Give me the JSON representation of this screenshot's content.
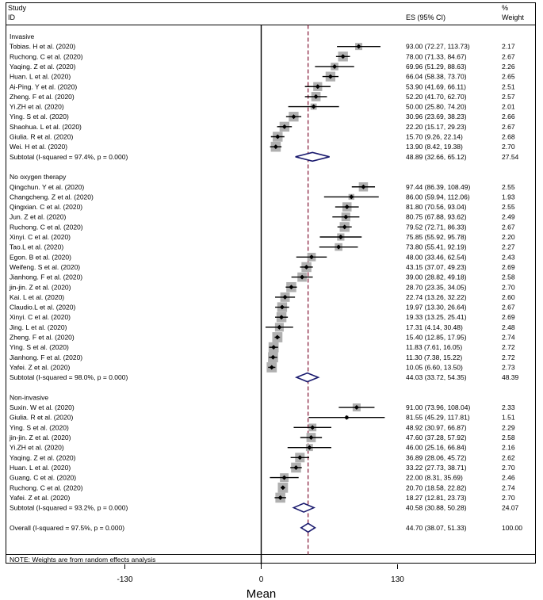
{
  "header": {
    "study_l1": "Study",
    "study_l2": "ID",
    "es": "ES (95% CI)",
    "weight_l1": "%",
    "weight_l2": "Weight"
  },
  "footer_note": "NOTE: Weights are from random effects analysis",
  "x_label": "Mean",
  "x_ticks": [
    "-130",
    "0",
    "130"
  ],
  "colors": {
    "diamond": "#1a1a6e",
    "box": "#b0b0b0",
    "ref_line": "#8b2340"
  },
  "chart_data": {
    "type": "forest",
    "xlabel": "Mean",
    "xlim": [
      -130,
      130
    ],
    "xticks": [
      -130,
      0,
      130
    ],
    "reference_line": 44.7,
    "groups": [
      {
        "name": "Invasive",
        "studies": [
          {
            "id": "Tobias. H et al. (2020)",
            "es": 93.0,
            "lo": 72.27,
            "hi": 113.73,
            "es_text": "93.00 (72.27, 113.73)",
            "weight": "2.17"
          },
          {
            "id": "Ruchong. C et al. (2020)",
            "es": 78.0,
            "lo": 71.33,
            "hi": 84.67,
            "es_text": "78.00 (71.33, 84.67)",
            "weight": "2.67"
          },
          {
            "id": "Yaqing. Z et al. (2020)",
            "es": 69.96,
            "lo": 51.29,
            "hi": 88.63,
            "es_text": "69.96 (51.29, 88.63)",
            "weight": "2.26"
          },
          {
            "id": "Huan. L et al. (2020)",
            "es": 66.04,
            "lo": 58.38,
            "hi": 73.7,
            "es_text": "66.04 (58.38, 73.70)",
            "weight": "2.65"
          },
          {
            "id": "Ai-Ping. Y et al. (2020)",
            "es": 53.9,
            "lo": 41.69,
            "hi": 66.11,
            "es_text": "53.90 (41.69, 66.11)",
            "weight": "2.51"
          },
          {
            "id": "Zheng. F et al. (2020)",
            "es": 52.2,
            "lo": 41.7,
            "hi": 62.7,
            "es_text": "52.20 (41.70, 62.70)",
            "weight": "2.57"
          },
          {
            "id": "Yi.ZH et al. (2020)",
            "es": 50.0,
            "lo": 25.8,
            "hi": 74.2,
            "es_text": "50.00 (25.80, 74.20)",
            "weight": "2.01"
          },
          {
            "id": "Ying. S et al. (2020)",
            "es": 30.96,
            "lo": 23.69,
            "hi": 38.23,
            "es_text": "30.96 (23.69, 38.23)",
            "weight": "2.66"
          },
          {
            "id": "Shaohua. L et al. (2020)",
            "es": 22.2,
            "lo": 15.17,
            "hi": 29.23,
            "es_text": "22.20 (15.17, 29.23)",
            "weight": "2.67"
          },
          {
            "id": "Giulia. R et al. (2020)",
            "es": 15.7,
            "lo": 9.26,
            "hi": 22.14,
            "es_text": "15.70 (9.26, 22.14)",
            "weight": "2.68"
          },
          {
            "id": "Wei. H et al. (2020)",
            "es": 13.9,
            "lo": 8.42,
            "hi": 19.38,
            "es_text": "13.90 (8.42, 19.38)",
            "weight": "2.70"
          }
        ],
        "subtotal": {
          "label": "Subtotal  (I-squared = 97.4%, p = 0.000)",
          "es": 48.89,
          "lo": 32.66,
          "hi": 65.12,
          "es_text": "48.89 (32.66, 65.12)",
          "weight": "27.54"
        }
      },
      {
        "name": "No oxygen therapy",
        "studies": [
          {
            "id": "Qingchun. Y et al. (2020)",
            "es": 97.44,
            "lo": 86.39,
            "hi": 108.49,
            "es_text": "97.44 (86.39, 108.49)",
            "weight": "2.55"
          },
          {
            "id": "Changcheng. Z et al. (2020)",
            "es": 86.0,
            "lo": 59.94,
            "hi": 112.06,
            "es_text": "86.00 (59.94, 112.06)",
            "weight": "1.93"
          },
          {
            "id": "Qingxian. C et al. (2020)",
            "es": 81.8,
            "lo": 70.56,
            "hi": 93.04,
            "es_text": "81.80 (70.56, 93.04)",
            "weight": "2.55"
          },
          {
            "id": "Jun. Z et al. (2020)",
            "es": 80.75,
            "lo": 67.88,
            "hi": 93.62,
            "es_text": "80.75 (67.88, 93.62)",
            "weight": "2.49"
          },
          {
            "id": "Ruchong. C et al. (2020)",
            "es": 79.52,
            "lo": 72.71,
            "hi": 86.33,
            "es_text": "79.52 (72.71, 86.33)",
            "weight": "2.67"
          },
          {
            "id": "Xinyi. C et al. (2020)",
            "es": 75.85,
            "lo": 55.92,
            "hi": 95.78,
            "es_text": "75.85 (55.92, 95.78)",
            "weight": "2.20"
          },
          {
            "id": "Tao.L et al. (2020)",
            "es": 73.8,
            "lo": 55.41,
            "hi": 92.19,
            "es_text": "73.80 (55.41, 92.19)",
            "weight": "2.27"
          },
          {
            "id": "Egon. B et al. (2020)",
            "es": 48.0,
            "lo": 33.46,
            "hi": 62.54,
            "es_text": "48.00 (33.46, 62.54)",
            "weight": "2.43"
          },
          {
            "id": "Weifeng. S et al. (2020)",
            "es": 43.15,
            "lo": 37.07,
            "hi": 49.23,
            "es_text": "43.15 (37.07, 49.23)",
            "weight": "2.69"
          },
          {
            "id": "Jianhong. F et al. (2020)",
            "es": 39.0,
            "lo": 28.82,
            "hi": 49.18,
            "es_text": "39.00 (28.82, 49.18)",
            "weight": "2.58"
          },
          {
            "id": "jin-jin. Z et al. (2020)",
            "es": 28.7,
            "lo": 23.35,
            "hi": 34.05,
            "es_text": "28.70 (23.35, 34.05)",
            "weight": "2.70"
          },
          {
            "id": "Kai. L et al. (2020)",
            "es": 22.74,
            "lo": 13.26,
            "hi": 32.22,
            "es_text": "22.74 (13.26, 32.22)",
            "weight": "2.60"
          },
          {
            "id": "Claudio.L et al. (2020)",
            "es": 19.97,
            "lo": 13.3,
            "hi": 26.64,
            "es_text": "19.97 (13.30, 26.64)",
            "weight": "2.67"
          },
          {
            "id": "Xinyi. C et al. (2020)",
            "es": 19.33,
            "lo": 13.25,
            "hi": 25.41,
            "es_text": "19.33 (13.25, 25.41)",
            "weight": "2.69"
          },
          {
            "id": "Jing. L et al. (2020)",
            "es": 17.31,
            "lo": 4.14,
            "hi": 30.48,
            "es_text": "17.31 (4.14, 30.48)",
            "weight": "2.48"
          },
          {
            "id": "Zheng. F et al. (2020)",
            "es": 15.4,
            "lo": 12.85,
            "hi": 17.95,
            "es_text": "15.40 (12.85, 17.95)",
            "weight": "2.74"
          },
          {
            "id": "Ying. S et al. (2020)",
            "es": 11.83,
            "lo": 7.61,
            "hi": 16.05,
            "es_text": "11.83 (7.61, 16.05)",
            "weight": "2.72"
          },
          {
            "id": "Jianhong. F et al. (2020)",
            "es": 11.3,
            "lo": 7.38,
            "hi": 15.22,
            "es_text": "11.30 (7.38, 15.22)",
            "weight": "2.72"
          },
          {
            "id": "Yafei. Z et al. (2020)",
            "es": 10.05,
            "lo": 6.6,
            "hi": 13.5,
            "es_text": "10.05 (6.60, 13.50)",
            "weight": "2.73"
          }
        ],
        "subtotal": {
          "label": "Subtotal  (I-squared = 98.0%, p = 0.000)",
          "es": 44.03,
          "lo": 33.72,
          "hi": 54.35,
          "es_text": "44.03 (33.72, 54.35)",
          "weight": "48.39"
        }
      },
      {
        "name": "Non-invasive",
        "studies": [
          {
            "id": "Suxin. W et al. (2020)",
            "es": 91.0,
            "lo": 73.96,
            "hi": 108.04,
            "es_text": "91.00 (73.96, 108.04)",
            "weight": "2.33"
          },
          {
            "id": "Giulia. R et al. (2020)",
            "es": 81.55,
            "lo": 45.29,
            "hi": 117.81,
            "es_text": "81.55 (45.29, 117.81)",
            "weight": "1.51"
          },
          {
            "id": "Ying. S et al. (2020)",
            "es": 48.92,
            "lo": 30.97,
            "hi": 66.87,
            "es_text": "48.92 (30.97, 66.87)",
            "weight": "2.29"
          },
          {
            "id": "jin-jin. Z et al. (2020)",
            "es": 47.6,
            "lo": 37.28,
            "hi": 57.92,
            "es_text": "47.60 (37.28, 57.92)",
            "weight": "2.58"
          },
          {
            "id": "Yi.ZH et al. (2020)",
            "es": 46.0,
            "lo": 25.16,
            "hi": 66.84,
            "es_text": "46.00 (25.16, 66.84)",
            "weight": "2.16"
          },
          {
            "id": "Yaqing. Z et al. (2020)",
            "es": 36.89,
            "lo": 28.06,
            "hi": 45.72,
            "es_text": "36.89 (28.06, 45.72)",
            "weight": "2.62"
          },
          {
            "id": "Huan. L et al. (2020)",
            "es": 33.22,
            "lo": 27.73,
            "hi": 38.71,
            "es_text": "33.22 (27.73, 38.71)",
            "weight": "2.70"
          },
          {
            "id": "Guang. C et al. (2020)",
            "es": 22.0,
            "lo": 8.31,
            "hi": 35.69,
            "es_text": "22.00 (8.31, 35.69)",
            "weight": "2.46"
          },
          {
            "id": "Ruchong. C et al. (2020)",
            "es": 20.7,
            "lo": 18.58,
            "hi": 22.82,
            "es_text": "20.70 (18.58, 22.82)",
            "weight": "2.74"
          },
          {
            "id": "Yafei. Z et al. (2020)",
            "es": 18.27,
            "lo": 12.81,
            "hi": 23.73,
            "es_text": "18.27 (12.81, 23.73)",
            "weight": "2.70"
          }
        ],
        "subtotal": {
          "label": "Subtotal  (I-squared = 93.2%, p = 0.000)",
          "es": 40.58,
          "lo": 30.88,
          "hi": 50.28,
          "es_text": "40.58 (30.88, 50.28)",
          "weight": "24.07"
        }
      }
    ],
    "overall": {
      "label": "Overall  (I-squared = 97.5%, p = 0.000)",
      "es": 44.7,
      "lo": 38.07,
      "hi": 51.33,
      "es_text": "44.70 (38.07, 51.33)",
      "weight": "100.00"
    }
  }
}
